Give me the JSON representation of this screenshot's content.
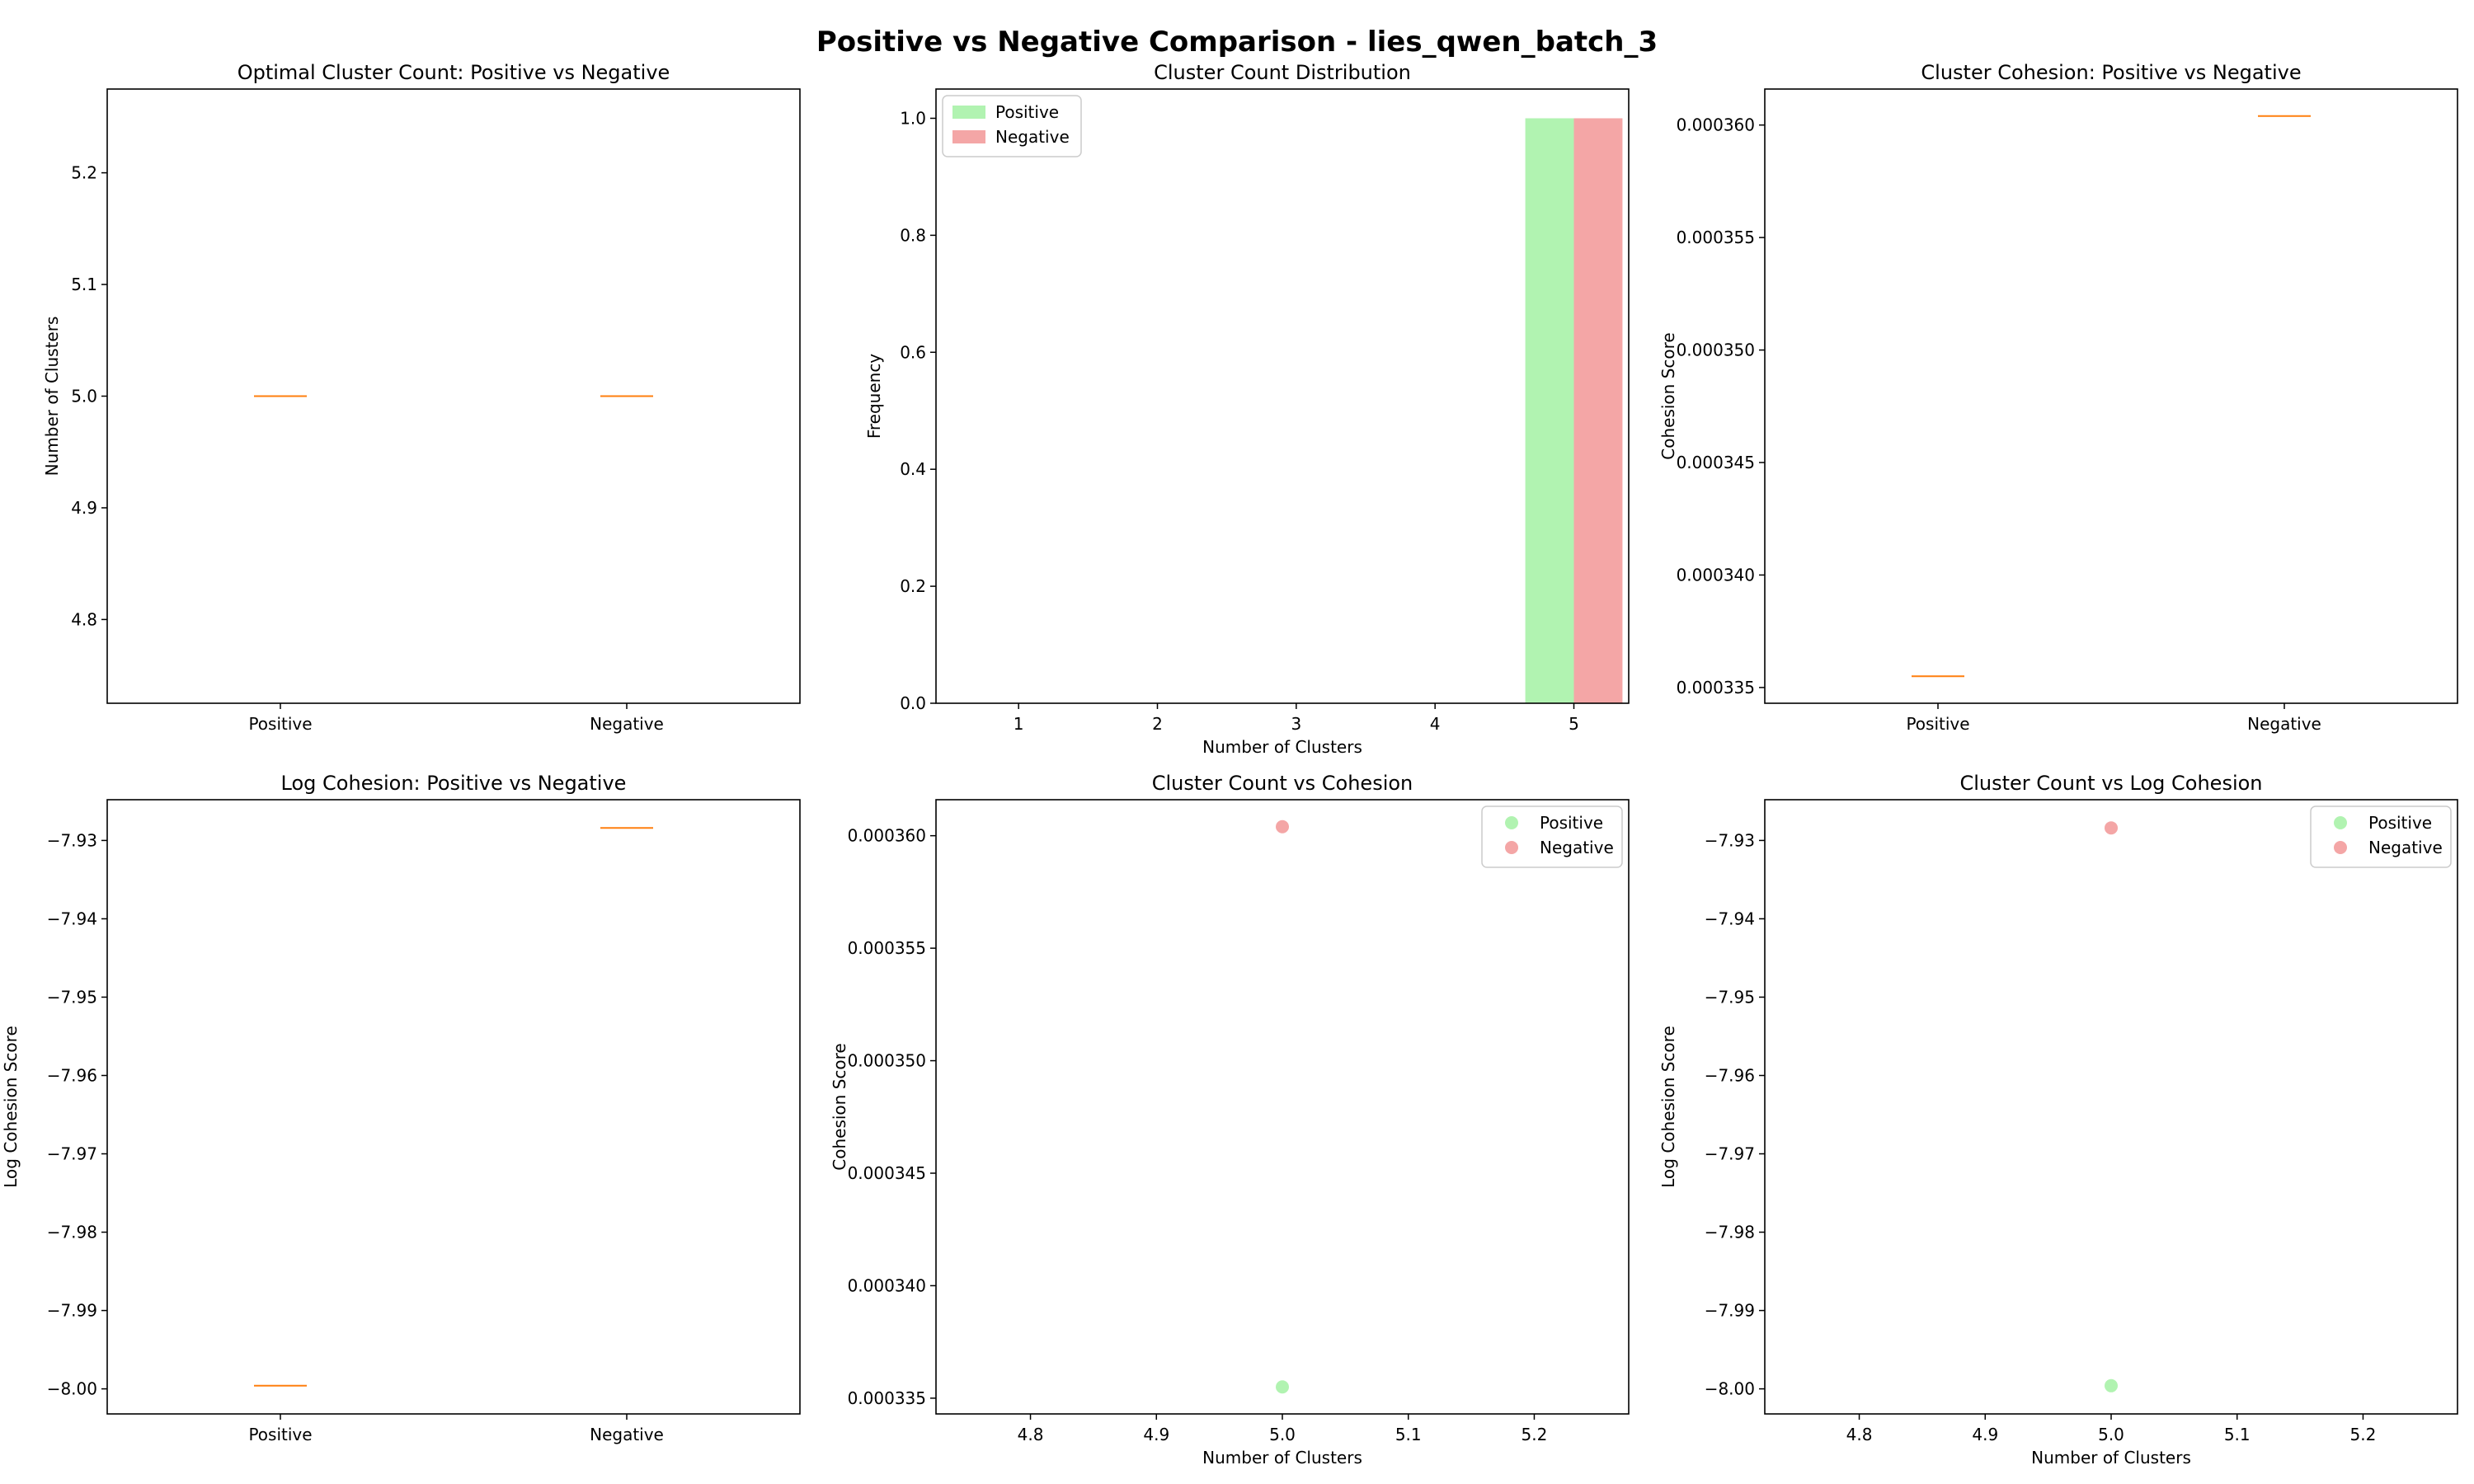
{
  "figure_title": "Positive vs Negative Comparison - lies_qwen_batch_3",
  "colors": {
    "positive": "#90ee90",
    "negative": "#f08080",
    "median": "#ff7f0e",
    "axes": "#000000"
  },
  "chart_data": [
    {
      "type": "box",
      "title": "Optimal Cluster Count: Positive vs Negative",
      "xlabel": "",
      "ylabel": "Number of Clusters",
      "categories": [
        "Positive",
        "Negative"
      ],
      "values": [
        5.0,
        5.0
      ],
      "ylim": [
        4.725,
        5.275
      ],
      "yticks": [
        "4.8",
        "4.9",
        "5.0",
        "5.1",
        "5.2"
      ],
      "grid": false
    },
    {
      "type": "bar",
      "title": "Cluster Count Distribution",
      "xlabel": "Number of Clusters",
      "ylabel": "Frequency",
      "categories": [
        "1",
        "2",
        "3",
        "4",
        "5"
      ],
      "series": [
        {
          "name": "Positive",
          "values": [
            0,
            0,
            0,
            0,
            1.0
          ]
        },
        {
          "name": "Negative",
          "values": [
            0,
            0,
            0,
            0,
            1.0
          ]
        }
      ],
      "ylim": [
        0,
        1.05
      ],
      "yticks": [
        "0.0",
        "0.2",
        "0.4",
        "0.6",
        "0.8",
        "1.0"
      ],
      "legend": "top-left",
      "grid": false
    },
    {
      "type": "box",
      "title": "Cluster Cohesion: Positive vs Negative",
      "xlabel": "",
      "ylabel": "Cohesion Score",
      "categories": [
        "Positive",
        "Negative"
      ],
      "values": [
        0.0003355,
        0.0003604
      ],
      "ylim": [
        0.0003343,
        0.0003616
      ],
      "yticks": [
        "0.000335",
        "0.000340",
        "0.000345",
        "0.000350",
        "0.000355",
        "0.000360"
      ],
      "grid": false
    },
    {
      "type": "box",
      "title": "Log Cohesion: Positive vs Negative",
      "xlabel": "",
      "ylabel": "Log Cohesion Score",
      "categories": [
        "Positive",
        "Negative"
      ],
      "values": [
        -7.9996,
        -7.9284
      ],
      "ylim": [
        -8.0032,
        -7.9248
      ],
      "yticks": [
        "−8.00",
        "−7.99",
        "−7.98",
        "−7.97",
        "−7.96",
        "−7.95",
        "−7.94",
        "−7.93"
      ],
      "grid": false
    },
    {
      "type": "scatter",
      "title": "Cluster Count vs Cohesion",
      "xlabel": "Number of Clusters",
      "ylabel": "Cohesion Score",
      "series": [
        {
          "name": "Positive",
          "x": [
            5.0
          ],
          "y": [
            0.0003355
          ]
        },
        {
          "name": "Negative",
          "x": [
            5.0
          ],
          "y": [
            0.0003604
          ]
        }
      ],
      "xlim": [
        4.725,
        5.275
      ],
      "ylim": [
        0.0003343,
        0.0003616
      ],
      "xticks": [
        "4.8",
        "4.9",
        "5.0",
        "5.1",
        "5.2"
      ],
      "yticks": [
        "0.000335",
        "0.000340",
        "0.000345",
        "0.000350",
        "0.000355",
        "0.000360"
      ],
      "legend": "top-right",
      "grid": false
    },
    {
      "type": "scatter",
      "title": "Cluster Count vs Log Cohesion",
      "xlabel": "Number of Clusters",
      "ylabel": "Log Cohesion Score",
      "series": [
        {
          "name": "Positive",
          "x": [
            5.0
          ],
          "y": [
            -7.9996
          ]
        },
        {
          "name": "Negative",
          "x": [
            5.0
          ],
          "y": [
            -7.9284
          ]
        }
      ],
      "xlim": [
        4.725,
        5.275
      ],
      "ylim": [
        -8.0032,
        -7.9248
      ],
      "xticks": [
        "4.8",
        "4.9",
        "5.0",
        "5.1",
        "5.2"
      ],
      "yticks": [
        "−8.00",
        "−7.99",
        "−7.98",
        "−7.97",
        "−7.96",
        "−7.95",
        "−7.94",
        "−7.93"
      ],
      "legend": "top-right",
      "grid": false
    }
  ]
}
